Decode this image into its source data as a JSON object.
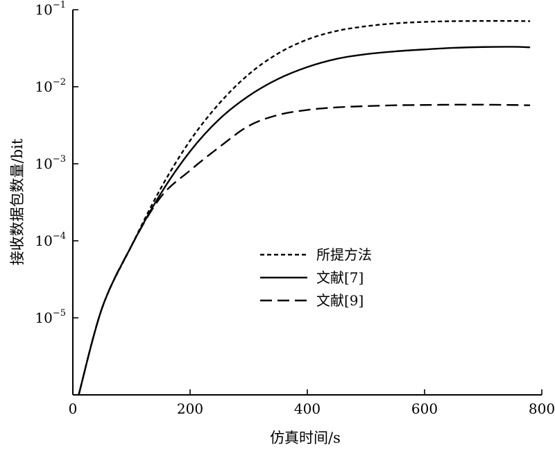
{
  "chart_data": {
    "type": "line",
    "title": "",
    "xlabel": "仿真时间/s",
    "ylabel": "接收数据包数量/bit",
    "xlim": [
      0,
      800
    ],
    "ylim": [
      1e-06,
      0.1
    ],
    "yscale": "log",
    "grid": false,
    "legend_position": "center",
    "x_ticks": [
      {
        "value": 0,
        "label": "0"
      },
      {
        "value": 200,
        "label": "200"
      },
      {
        "value": 400,
        "label": "400"
      },
      {
        "value": 600,
        "label": "600"
      },
      {
        "value": 800,
        "label": "800"
      }
    ],
    "y_ticks": [
      {
        "value": 1e-05,
        "base": "10",
        "exp": "−5"
      },
      {
        "value": 0.0001,
        "base": "10",
        "exp": "−4"
      },
      {
        "value": 0.001,
        "base": "10",
        "exp": "−3"
      },
      {
        "value": 0.01,
        "base": "10",
        "exp": "−2"
      },
      {
        "value": 0.1,
        "base": "10",
        "exp": "−1"
      }
    ],
    "series": [
      {
        "name": "所提方法",
        "style": "dotted",
        "color": "#000000",
        "x": [
          10,
          50,
          100,
          150,
          200,
          250,
          300,
          350,
          400,
          450,
          500,
          550,
          600,
          650,
          700,
          750,
          780
        ],
        "y": [
          1e-06,
          1.35e-05,
          8.6e-05,
          0.00048,
          0.002,
          0.0061,
          0.0145,
          0.027,
          0.041,
          0.053,
          0.061,
          0.0665,
          0.0695,
          0.071,
          0.0715,
          0.0715,
          0.071
        ]
      },
      {
        "name": "文献[7]",
        "style": "solid",
        "color": "#000000",
        "x": [
          10,
          50,
          100,
          150,
          200,
          250,
          300,
          350,
          400,
          450,
          500,
          550,
          600,
          650,
          700,
          750,
          780
        ],
        "y": [
          1e-06,
          1.35e-05,
          8.6e-05,
          0.00041,
          0.00145,
          0.0038,
          0.0076,
          0.0126,
          0.018,
          0.023,
          0.0265,
          0.0288,
          0.0305,
          0.032,
          0.0328,
          0.033,
          0.0325
        ]
      },
      {
        "name": "文献[9]",
        "style": "dashed",
        "color": "#000000",
        "x": [
          10,
          50,
          100,
          150,
          200,
          250,
          300,
          350,
          400,
          450,
          500,
          550,
          600,
          650,
          700,
          750,
          780
        ],
        "y": [
          1e-06,
          1.35e-05,
          8.6e-05,
          0.00037,
          0.00082,
          0.00165,
          0.0031,
          0.0043,
          0.005,
          0.0054,
          0.0056,
          0.00575,
          0.0058,
          0.00585,
          0.00585,
          0.0058,
          0.00575
        ]
      }
    ]
  }
}
